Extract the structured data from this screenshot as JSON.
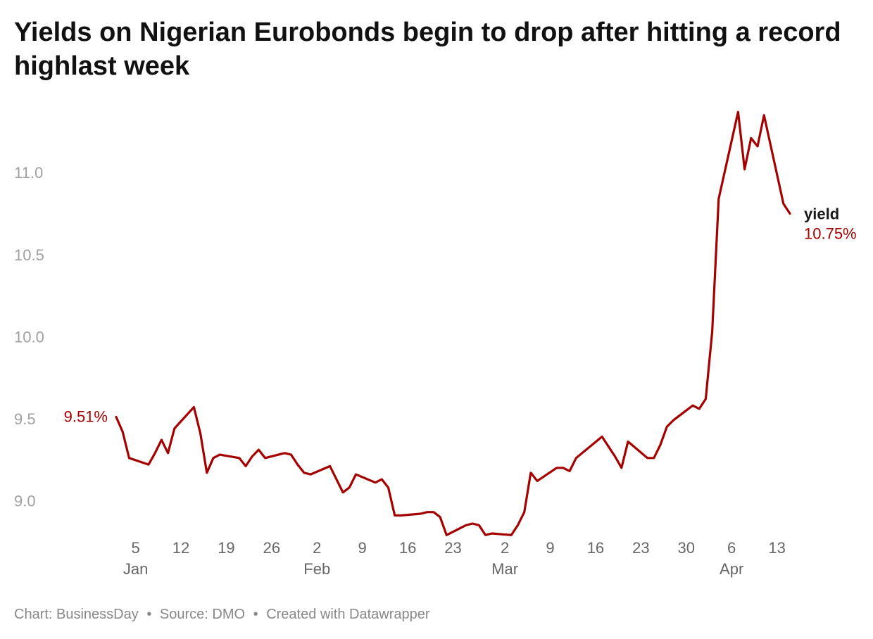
{
  "header": {
    "title": "Yields on Nigerian Eurobonds begin to drop after hitting a record highlast week"
  },
  "footer": {
    "credit": "Chart: BusinessDay",
    "separator": "•",
    "source": "Source: DMO",
    "separator2": "•",
    "tool": "Created with Datawrapper"
  },
  "chart_data": {
    "type": "line",
    "title": "Yields on Nigerian Eurobonds begin to drop after hitting a record highlast week",
    "xlabel": "",
    "ylabel": "",
    "ylim": [
      8.8,
      11.4
    ],
    "yticks": [
      9.0,
      9.5,
      10.0,
      10.5,
      11.0
    ],
    "ytick_labels": [
      "9.0",
      "9.5",
      "10.0",
      "10.5",
      "11.0"
    ],
    "xlim": [
      "2023-12-31",
      "2024-04-15"
    ],
    "xticks": [
      {
        "date": "2024-01-05",
        "label": "5"
      },
      {
        "date": "2024-01-12",
        "label": "12"
      },
      {
        "date": "2024-01-19",
        "label": "19"
      },
      {
        "date": "2024-01-26",
        "label": "26"
      },
      {
        "date": "2024-02-02",
        "label": "2"
      },
      {
        "date": "2024-02-09",
        "label": "9"
      },
      {
        "date": "2024-02-16",
        "label": "16"
      },
      {
        "date": "2024-02-23",
        "label": "23"
      },
      {
        "date": "2024-03-02",
        "label": "2"
      },
      {
        "date": "2024-03-09",
        "label": "9"
      },
      {
        "date": "2024-03-16",
        "label": "16"
      },
      {
        "date": "2024-03-23",
        "label": "23"
      },
      {
        "date": "2024-03-30",
        "label": "30"
      },
      {
        "date": "2024-04-06",
        "label": "6"
      },
      {
        "date": "2024-04-13",
        "label": "13"
      }
    ],
    "month_labels": [
      {
        "date": "2024-01-05",
        "label": "Jan"
      },
      {
        "date": "2024-02-02",
        "label": "Feb"
      },
      {
        "date": "2024-03-02",
        "label": "Mar"
      },
      {
        "date": "2024-04-06",
        "label": "Apr"
      }
    ],
    "grid": false,
    "legend": "none",
    "series": [
      {
        "name": "yield",
        "color": "#a50000",
        "start_label": "9.51%",
        "end_label": "10.75%",
        "points": [
          [
            "2024-01-02",
            9.51
          ],
          [
            "2024-01-03",
            9.42
          ],
          [
            "2024-01-04",
            9.26
          ],
          [
            "2024-01-07",
            9.22
          ],
          [
            "2024-01-08",
            9.29
          ],
          [
            "2024-01-09",
            9.37
          ],
          [
            "2024-01-10",
            9.29
          ],
          [
            "2024-01-11",
            9.44
          ],
          [
            "2024-01-14",
            9.57
          ],
          [
            "2024-01-15",
            9.41
          ],
          [
            "2024-01-16",
            9.17
          ],
          [
            "2024-01-17",
            9.26
          ],
          [
            "2024-01-18",
            9.28
          ],
          [
            "2024-01-21",
            9.26
          ],
          [
            "2024-01-22",
            9.21
          ],
          [
            "2024-01-23",
            9.27
          ],
          [
            "2024-01-24",
            9.31
          ],
          [
            "2024-01-25",
            9.26
          ],
          [
            "2024-01-28",
            9.29
          ],
          [
            "2024-01-29",
            9.28
          ],
          [
            "2024-01-30",
            9.22
          ],
          [
            "2024-01-31",
            9.17
          ],
          [
            "2024-02-01",
            9.16
          ],
          [
            "2024-02-04",
            9.21
          ],
          [
            "2024-02-05",
            9.13
          ],
          [
            "2024-02-06",
            9.05
          ],
          [
            "2024-02-07",
            9.08
          ],
          [
            "2024-02-08",
            9.16
          ],
          [
            "2024-02-11",
            9.11
          ],
          [
            "2024-02-12",
            9.13
          ],
          [
            "2024-02-13",
            9.08
          ],
          [
            "2024-02-14",
            8.91
          ],
          [
            "2024-02-15",
            8.91
          ],
          [
            "2024-02-18",
            8.92
          ],
          [
            "2024-02-19",
            8.93
          ],
          [
            "2024-02-20",
            8.93
          ],
          [
            "2024-02-21",
            8.9
          ],
          [
            "2024-02-22",
            8.79
          ],
          [
            "2024-02-25",
            8.85
          ],
          [
            "2024-02-26",
            8.86
          ],
          [
            "2024-02-27",
            8.85
          ],
          [
            "2024-02-28",
            8.79
          ],
          [
            "2024-02-29",
            8.8
          ],
          [
            "2024-03-03",
            8.79
          ],
          [
            "2024-03-04",
            8.85
          ],
          [
            "2024-03-05",
            8.93
          ],
          [
            "2024-03-06",
            9.17
          ],
          [
            "2024-03-07",
            9.12
          ],
          [
            "2024-03-10",
            9.2
          ],
          [
            "2024-03-11",
            9.2
          ],
          [
            "2024-03-12",
            9.18
          ],
          [
            "2024-03-13",
            9.26
          ],
          [
            "2024-03-17",
            9.39
          ],
          [
            "2024-03-19",
            9.27
          ],
          [
            "2024-03-20",
            9.2
          ],
          [
            "2024-03-21",
            9.36
          ],
          [
            "2024-03-24",
            9.26
          ],
          [
            "2024-03-25",
            9.26
          ],
          [
            "2024-03-26",
            9.34
          ],
          [
            "2024-03-27",
            9.45
          ],
          [
            "2024-03-28",
            9.49
          ],
          [
            "2024-03-31",
            9.58
          ],
          [
            "2024-04-01",
            9.56
          ],
          [
            "2024-04-02",
            9.62
          ],
          [
            "2024-04-03",
            10.03
          ],
          [
            "2024-04-04",
            10.84
          ],
          [
            "2024-04-07",
            11.37
          ],
          [
            "2024-04-08",
            11.02
          ],
          [
            "2024-04-09",
            11.21
          ],
          [
            "2024-04-10",
            11.16
          ],
          [
            "2024-04-11",
            11.35
          ],
          [
            "2024-04-14",
            10.81
          ],
          [
            "2024-04-15",
            10.75
          ]
        ]
      }
    ]
  }
}
